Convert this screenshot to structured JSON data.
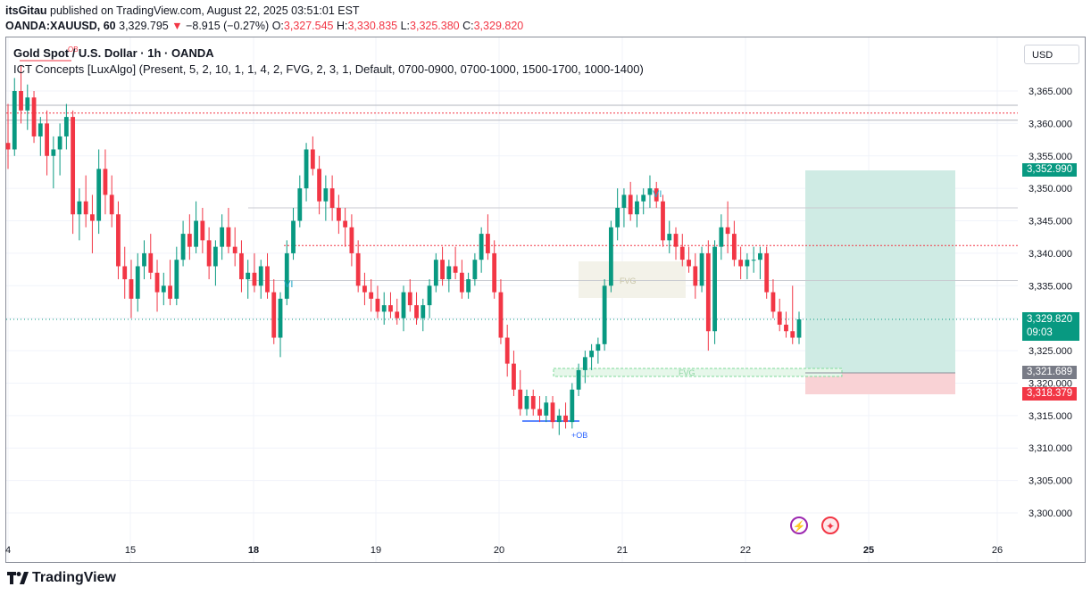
{
  "header": {
    "publisher": "itsGitau",
    "published_text": "published on TradingView.com, August 22, 2025 03:51:01 EST",
    "symbol": "OANDA:XAUUSD, 60",
    "price": "3,329.795",
    "change": "−8.915 (−0.27%)",
    "open_label": "O:",
    "open": "3,327.545",
    "high_label": "H:",
    "high": "3,330.835",
    "low_label": "L:",
    "low": "3,325.380",
    "close_label": "C:",
    "close": "3,329.820"
  },
  "legend": {
    "title": "Gold Spot / U.S. Dollar · 1h · OANDA",
    "indicator": "ICT Concepts [LuxAlgo] (Present, 5, 2, 10, 1, 1, 4, 2, FVG, 2, 3, 1, Default, 0700-0900, 0700-1000, 1500-1700, 1000-1400)"
  },
  "currency_button": "USD",
  "price_axis": [
    "3,365.000",
    "3,360.000",
    "3,355.000",
    "3,350.000",
    "3,345.000",
    "3,340.000",
    "3,335.000",
    "3,330.000",
    "3,325.000",
    "3,320.000",
    "3,315.000",
    "3,310.000",
    "3,305.000",
    "3,300.000"
  ],
  "time_axis": [
    "4",
    "15",
    "18",
    "19",
    "20",
    "21",
    "22",
    "25",
    "26"
  ],
  "price_labels": {
    "target": "3,352.990",
    "last": "3,329.820",
    "countdown": "09:03",
    "entry": "3,321.689",
    "stop": "3,318.379"
  },
  "annotations": {
    "vi1": "VI",
    "vi2": "VI",
    "fvg1": "FVG",
    "fvg2": "FVG",
    "ob": "+OB",
    "ob_top": "OB"
  },
  "branding": "TradingView",
  "colors": {
    "up": "#089981",
    "down": "#f23645",
    "profit": "#cfebe4",
    "loss": "#f9d2d5"
  },
  "chart_data": {
    "type": "candlestick",
    "symbol": "XAUUSD",
    "timeframe": "1h",
    "ylim": [
      3297.5,
      3372
    ],
    "ohlc": [
      [
        3357,
        3363,
        3353,
        3356
      ],
      [
        3356,
        3367,
        3355,
        3365
      ],
      [
        3365,
        3369,
        3360,
        3362
      ],
      [
        3362,
        3366,
        3359,
        3364
      ],
      [
        3364,
        3365,
        3357,
        3358
      ],
      [
        3358,
        3361,
        3355,
        3360
      ],
      [
        3360,
        3362,
        3352,
        3355
      ],
      [
        3355,
        3358,
        3350,
        3356
      ],
      [
        3356,
        3360,
        3352,
        3358
      ],
      [
        3358,
        3363,
        3356,
        3361
      ],
      [
        3361,
        3362,
        3343,
        3346
      ],
      [
        3346,
        3350,
        3342,
        3348
      ],
      [
        3348,
        3352,
        3344,
        3346
      ],
      [
        3346,
        3349,
        3340,
        3345
      ],
      [
        3345,
        3356,
        3343,
        3353
      ],
      [
        3353,
        3356,
        3346,
        3349
      ],
      [
        3349,
        3352,
        3344,
        3346
      ],
      [
        3346,
        3348,
        3336,
        3338
      ],
      [
        3338,
        3341,
        3333,
        3336
      ],
      [
        3336,
        3339,
        3330,
        3333
      ],
      [
        3333,
        3340,
        3331,
        3338
      ],
      [
        3338,
        3342,
        3336,
        3340
      ],
      [
        3340,
        3343,
        3336,
        3337
      ],
      [
        3337,
        3339,
        3331,
        3334
      ],
      [
        3334,
        3337,
        3332,
        3335
      ],
      [
        3335,
        3339,
        3332,
        3333
      ],
      [
        3333,
        3341,
        3332,
        3339
      ],
      [
        3339,
        3345,
        3338,
        3343
      ],
      [
        3343,
        3346,
        3339,
        3341
      ],
      [
        3341,
        3348,
        3340,
        3345
      ],
      [
        3345,
        3347,
        3340,
        3342
      ],
      [
        3342,
        3344,
        3336,
        3338
      ],
      [
        3338,
        3342,
        3335,
        3341
      ],
      [
        3341,
        3346,
        3339,
        3344
      ],
      [
        3344,
        3347,
        3340,
        3341
      ],
      [
        3341,
        3344,
        3338,
        3340
      ],
      [
        3340,
        3342,
        3334,
        3336
      ],
      [
        3336,
        3339,
        3333,
        3337
      ],
      [
        3337,
        3340,
        3334,
        3335
      ],
      [
        3335,
        3339,
        3333,
        3338
      ],
      [
        3338,
        3340,
        3333,
        3334
      ],
      [
        3334,
        3336,
        3326,
        3327
      ],
      [
        3327,
        3334,
        3324,
        3333
      ],
      [
        3333,
        3342,
        3332,
        3340
      ],
      [
        3340,
        3347,
        3339,
        3345
      ],
      [
        3345,
        3352,
        3344,
        3350
      ],
      [
        3350,
        3357,
        3348,
        3356
      ],
      [
        3356,
        3358,
        3352,
        3353
      ],
      [
        3353,
        3355,
        3346,
        3348
      ],
      [
        3348,
        3352,
        3345,
        3350
      ],
      [
        3350,
        3352,
        3345,
        3347
      ],
      [
        3347,
        3349,
        3343,
        3345
      ],
      [
        3345,
        3347,
        3341,
        3344
      ],
      [
        3344,
        3346,
        3338,
        3340
      ],
      [
        3340,
        3342,
        3334,
        3335
      ],
      [
        3335,
        3337,
        3332,
        3334
      ],
      [
        3334,
        3336,
        3331,
        3333
      ],
      [
        3333,
        3335,
        3330,
        3331
      ],
      [
        3331,
        3334,
        3329,
        3332
      ],
      [
        3332,
        3334,
        3330,
        3331
      ],
      [
        3331,
        3333,
        3329,
        3330
      ],
      [
        3330,
        3335,
        3328,
        3334
      ],
      [
        3334,
        3336,
        3331,
        3332
      ],
      [
        3332,
        3334,
        3329,
        3330
      ],
      [
        3330,
        3333,
        3328,
        3332
      ],
      [
        3332,
        3336,
        3330,
        3335
      ],
      [
        3335,
        3340,
        3334,
        3339
      ],
      [
        3339,
        3341,
        3335,
        3336
      ],
      [
        3336,
        3339,
        3334,
        3338
      ],
      [
        3338,
        3341,
        3336,
        3337
      ],
      [
        3337,
        3339,
        3333,
        3334
      ],
      [
        3334,
        3337,
        3333,
        3336
      ],
      [
        3336,
        3340,
        3335,
        3339
      ],
      [
        3339,
        3344,
        3337,
        3343
      ],
      [
        3343,
        3346,
        3339,
        3340
      ],
      [
        3340,
        3342,
        3333,
        3334
      ],
      [
        3334,
        3336,
        3326,
        3327
      ],
      [
        3327,
        3329,
        3321,
        3323
      ],
      [
        3323,
        3325,
        3318,
        3319
      ],
      [
        3319,
        3322,
        3315,
        3316
      ],
      [
        3316,
        3319,
        3315,
        3318
      ],
      [
        3318,
        3319,
        3315,
        3316
      ],
      [
        3316,
        3318,
        3314,
        3315
      ],
      [
        3315,
        3318,
        3314,
        3317
      ],
      [
        3317,
        3318,
        3313,
        3314
      ],
      [
        3314,
        3316,
        3312,
        3315
      ],
      [
        3315,
        3317,
        3313,
        3314
      ],
      [
        3314,
        3320,
        3313,
        3319
      ],
      [
        3319,
        3323,
        3318,
        3322
      ],
      [
        3322,
        3325,
        3320,
        3324
      ],
      [
        3324,
        3326,
        3322,
        3325
      ],
      [
        3325,
        3327,
        3323,
        3326
      ],
      [
        3326,
        3336,
        3325,
        3335
      ],
      [
        3335,
        3345,
        3334,
        3344
      ],
      [
        3344,
        3350,
        3342,
        3347
      ],
      [
        3347,
        3350,
        3344,
        3349
      ],
      [
        3349,
        3351,
        3345,
        3346
      ],
      [
        3346,
        3349,
        3344,
        3348
      ],
      [
        3348,
        3350,
        3346,
        3349
      ],
      [
        3349,
        3352,
        3347,
        3350
      ],
      [
        3350,
        3351,
        3347,
        3348
      ],
      [
        3348,
        3349,
        3341,
        3342
      ],
      [
        3342,
        3345,
        3340,
        3343
      ],
      [
        3343,
        3344,
        3339,
        3341
      ],
      [
        3341,
        3343,
        3338,
        3339
      ],
      [
        3339,
        3341,
        3337,
        3338
      ],
      [
        3338,
        3340,
        3333,
        3335
      ],
      [
        3335,
        3341,
        3334,
        3340
      ],
      [
        3340,
        3342,
        3325,
        3328
      ],
      [
        3328,
        3342,
        3326,
        3341
      ],
      [
        3341,
        3346,
        3339,
        3344
      ],
      [
        3344,
        3348,
        3340,
        3343
      ],
      [
        3343,
        3345,
        3338,
        3339
      ],
      [
        3339,
        3341,
        3336,
        3338
      ],
      [
        3338,
        3340,
        3336,
        3339
      ],
      [
        3339,
        3341,
        3337,
        3339
      ],
      [
        3339,
        3341,
        3336,
        3340
      ],
      [
        3340,
        3341,
        3333,
        3334
      ],
      [
        3334,
        3336,
        3330,
        3331
      ],
      [
        3331,
        3333,
        3328,
        3329
      ],
      [
        3329,
        3331,
        3327,
        3328
      ],
      [
        3328,
        3335,
        3326,
        3327
      ],
      [
        3327,
        3331,
        3326,
        3329.82
      ]
    ]
  }
}
